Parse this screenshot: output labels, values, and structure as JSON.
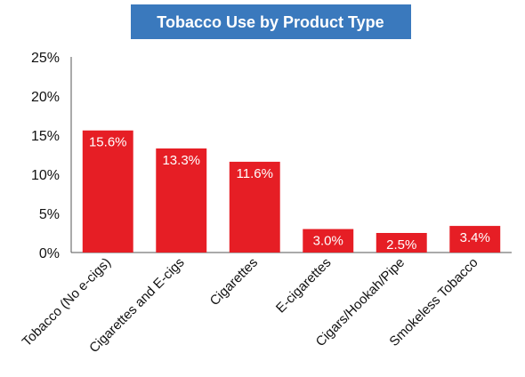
{
  "chart_data": {
    "type": "bar",
    "title": "Tobacco Use by Product Type",
    "categories": [
      "Tobacco (No e-cigs)",
      "Cigarettes and E-cigs",
      "Cigarettes",
      "E-cigarettes",
      "Cigars/Hookah/Pipe",
      "Smokeless Tobacco"
    ],
    "values": [
      15.6,
      13.3,
      11.6,
      3.0,
      2.5,
      3.4
    ],
    "data_labels": [
      "15.6%",
      "13.3%",
      "11.6%",
      "3.0%",
      "2.5%",
      "3.4%"
    ],
    "y_ticks": [
      "0%",
      "5%",
      "10%",
      "15%",
      "20%",
      "25%"
    ],
    "ylim": [
      0,
      25
    ],
    "grid": false,
    "legend": "none",
    "colors": {
      "bar": "#e61e25",
      "title_box": "#3a79bd",
      "title_text": "#ffffff"
    }
  }
}
